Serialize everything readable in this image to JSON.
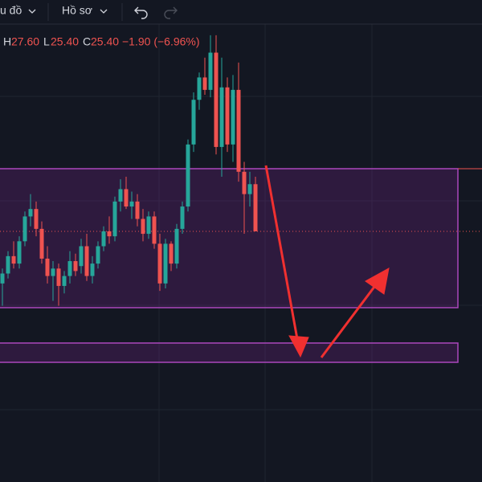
{
  "toolbar": {
    "chart_menu": "u đồ",
    "profile_menu": "Hồ sơ"
  },
  "legend": {
    "high_label": "H",
    "high": "27.60",
    "low_label": "L",
    "low": "25.40",
    "close_label": "C",
    "close": "25.40",
    "change": "−1.90 (−6.96%)"
  },
  "chart_data": {
    "type": "candlestick",
    "up_color": "#26a69a",
    "down_color": "#ef5350",
    "ylim": [
      15.3,
      33.75
    ],
    "open": [
      23.3,
      23.7,
      24.4,
      24.1,
      25.0,
      26.0,
      26.3,
      25.5,
      24.3,
      23.6,
      23.9,
      23.2,
      23.6,
      24.2,
      24.0,
      24.8,
      23.6,
      24.1,
      24.8,
      25.4,
      25.2,
      26.6,
      27.1,
      26.4,
      26.6,
      25.9,
      25.3,
      26.0,
      24.9,
      23.3,
      24.9,
      24.1,
      25.5,
      26.4,
      28.9,
      30.7,
      31.6,
      31.1,
      32.6,
      28.8,
      31.2,
      28.9,
      31.1,
      27.8,
      26.9,
      27.3
    ],
    "high": [
      23.9,
      24.6,
      25.0,
      25.2,
      26.2,
      26.9,
      26.6,
      25.8,
      24.8,
      24.2,
      24.1,
      23.8,
      24.6,
      24.5,
      25.1,
      25.3,
      24.4,
      25.0,
      25.6,
      26.0,
      26.8,
      27.5,
      27.6,
      27.0,
      26.9,
      26.3,
      26.2,
      26.2,
      25.3,
      25.1,
      25.0,
      25.7,
      26.6,
      29.1,
      31.0,
      31.8,
      32.4,
      33.3,
      33.3,
      32.4,
      31.6,
      31.7,
      32.2,
      28.2,
      27.8,
      27.6
    ],
    "low": [
      22.4,
      23.5,
      23.9,
      23.9,
      24.8,
      25.6,
      25.2,
      24.1,
      23.3,
      22.6,
      22.4,
      22.9,
      23.3,
      23.6,
      23.7,
      23.4,
      23.3,
      23.9,
      24.6,
      24.9,
      25.0,
      26.2,
      26.3,
      25.9,
      25.6,
      25.0,
      25.1,
      24.7,
      23.0,
      23.1,
      23.8,
      23.9,
      25.3,
      26.2,
      28.6,
      30.3,
      30.9,
      30.8,
      28.5,
      27.6,
      28.6,
      28.2,
      27.4,
      25.3,
      26.4,
      25.4
    ],
    "close": [
      23.7,
      24.4,
      24.1,
      25.0,
      26.0,
      26.3,
      25.5,
      24.3,
      23.6,
      23.9,
      23.2,
      23.6,
      24.2,
      23.8,
      24.8,
      23.6,
      24.1,
      24.8,
      25.4,
      25.2,
      26.6,
      27.1,
      26.4,
      26.6,
      25.9,
      25.3,
      26.0,
      24.9,
      23.3,
      24.9,
      24.1,
      25.5,
      26.4,
      28.9,
      30.7,
      31.6,
      31.1,
      32.6,
      28.8,
      31.2,
      28.9,
      31.1,
      27.8,
      26.9,
      27.3,
      25.4
    ]
  }
}
